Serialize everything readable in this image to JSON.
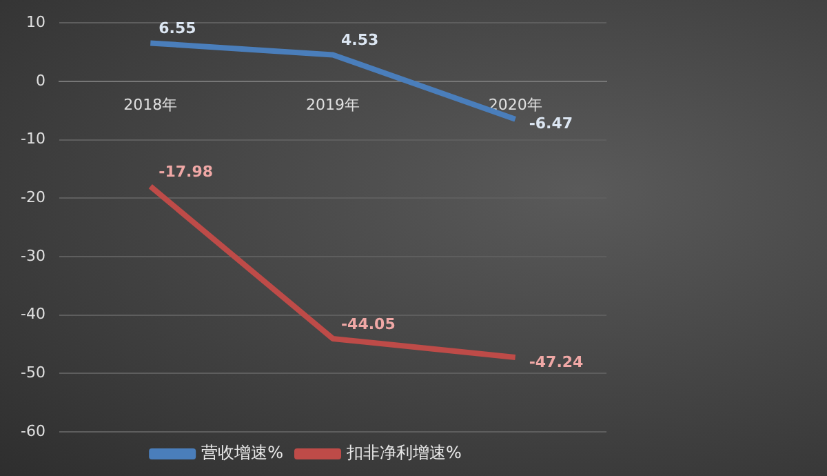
{
  "chart_data": {
    "type": "line",
    "categories": [
      "2018年",
      "2019年",
      "2020年"
    ],
    "series": [
      {
        "name": "营收增速%",
        "color": "#4a7ebb",
        "values": [
          6.55,
          4.53,
          -6.47
        ]
      },
      {
        "name": "扣非净利增速%",
        "color": "#be4b48",
        "values": [
          -17.98,
          -44.05,
          -47.24
        ]
      }
    ],
    "ylim": [
      -60,
      10
    ],
    "yticks": [
      -60,
      -50,
      -40,
      -30,
      -20,
      -10,
      0,
      10
    ],
    "grid": "y",
    "legend": "bottom",
    "data_labels": true,
    "marker": "none",
    "line_style": "solid"
  }
}
